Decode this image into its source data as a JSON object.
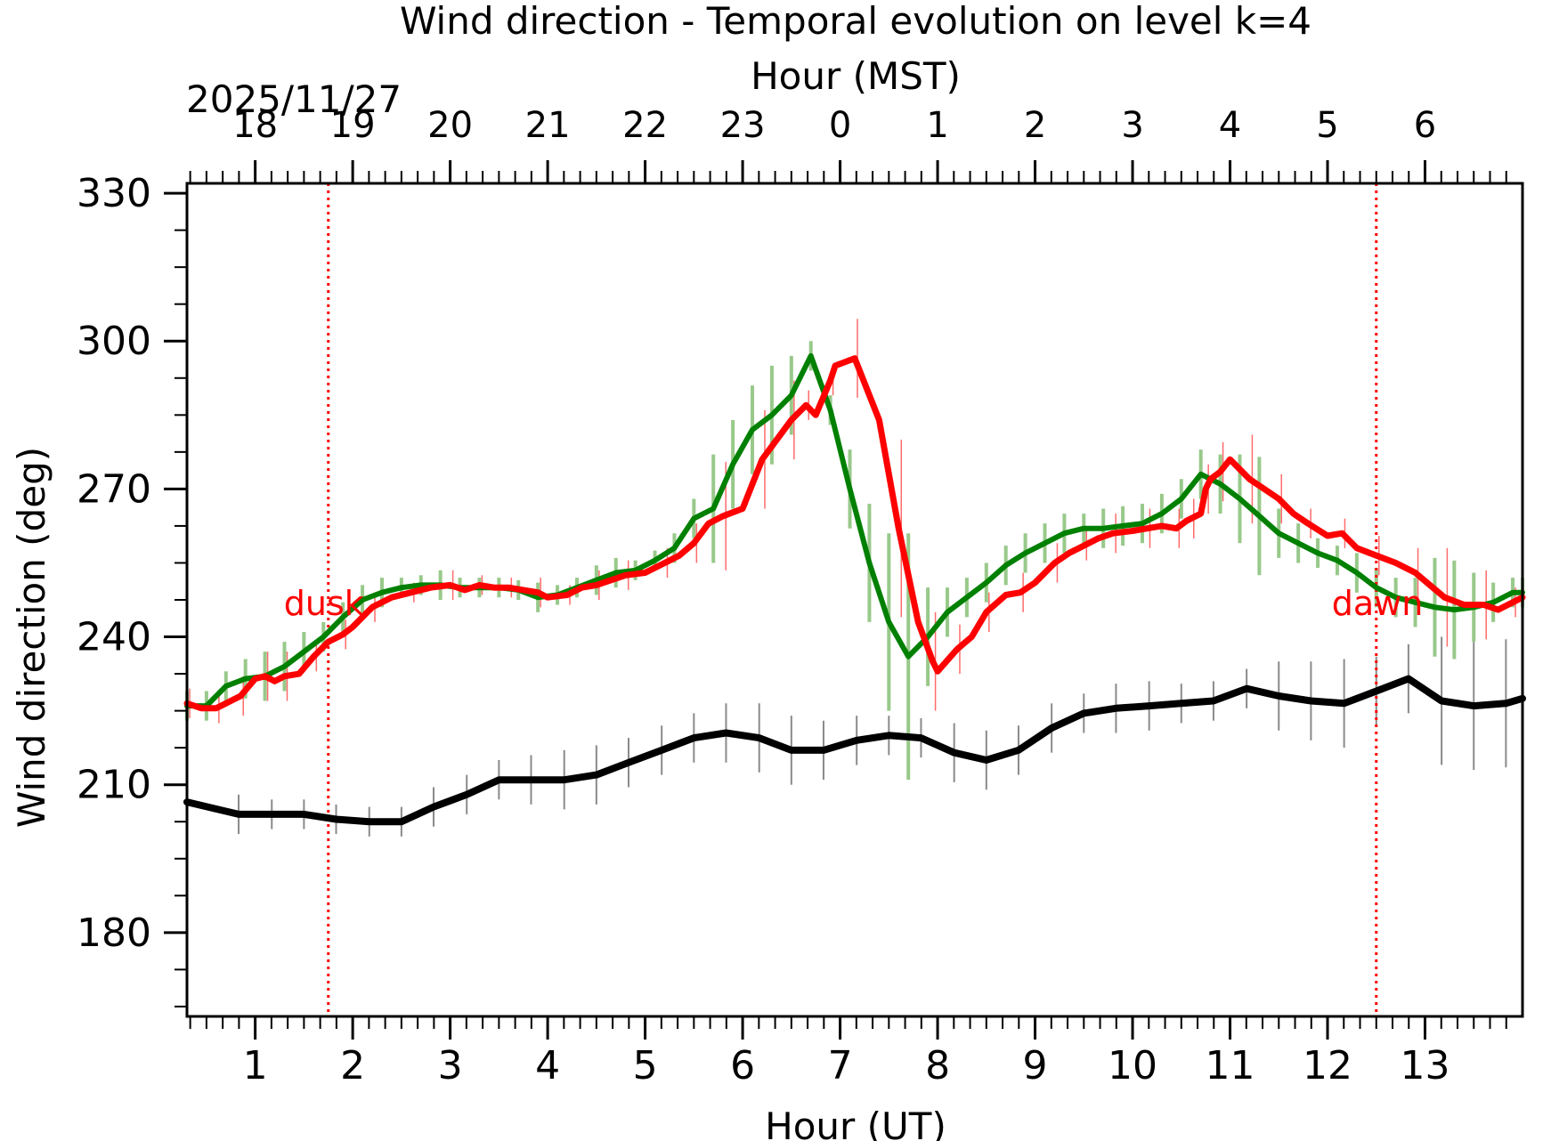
{
  "chart_data": {
    "type": "line",
    "title": "Wind direction - Temporal evolution on level k=4",
    "xlabel": "Hour (UT)",
    "ylabel": "Wind direction (deg)",
    "top_axis_label": "Hour (MST)",
    "date_label": "2025/11/27",
    "xlim": [
      0.3,
      14.0
    ],
    "ylim": [
      163,
      332
    ],
    "x_ticks": [
      "1",
      "2",
      "3",
      "4",
      "5",
      "6",
      "7",
      "8",
      "9",
      "10",
      "11",
      "12",
      "13"
    ],
    "y_ticks": [
      "180",
      "210",
      "240",
      "270",
      "300",
      "330"
    ],
    "top_ticks": [
      "18",
      "19",
      "20",
      "21",
      "22",
      "23",
      "0",
      "1",
      "2",
      "3",
      "4",
      "5",
      "6"
    ],
    "annotations": [
      {
        "text": "dusk",
        "x": 1.75,
        "y": 247
      },
      {
        "text": "dawn",
        "x": 12.5,
        "y": 247
      }
    ],
    "vlines": [
      1.75,
      12.5
    ],
    "colors": {
      "red": "#ff0000",
      "green": "#008000",
      "green_err": "#98c98a",
      "black": "#000000",
      "black_err": "#8a8a8a",
      "red_err": "#ff6b6b"
    },
    "series": [
      {
        "style": "black",
        "x": [
          0.3,
          0.83,
          1.17,
          1.5,
          1.83,
          2.17,
          2.5,
          2.83,
          3.17,
          3.5,
          3.83,
          4.17,
          4.5,
          4.83,
          5.17,
          5.5,
          5.83,
          6.17,
          6.5,
          6.83,
          7.17,
          7.5,
          7.83,
          8.17,
          8.5,
          8.83,
          9.17,
          9.5,
          9.83,
          10.17,
          10.5,
          10.83,
          11.17,
          11.5,
          11.83,
          12.17,
          12.5,
          12.83,
          13.17,
          13.5,
          13.83,
          14.0
        ],
        "y": [
          206.5,
          204,
          204,
          204,
          203,
          202.5,
          202.5,
          205.5,
          208,
          211,
          211,
          211,
          212,
          214.5,
          217,
          219.5,
          220.5,
          219.5,
          217,
          217,
          219,
          220,
          219.5,
          216.5,
          215,
          217,
          221.5,
          224.5,
          225.5,
          226,
          226.5,
          227,
          229.5,
          228,
          227,
          226.5,
          229,
          231.5,
          227,
          226,
          226.5,
          227.5
        ],
        "err": [
          5,
          4,
          3,
          3,
          3,
          3,
          3,
          4,
          4,
          4,
          5,
          6,
          6,
          5,
          5,
          5,
          6,
          7,
          7,
          6,
          5,
          4,
          4,
          6,
          6,
          5,
          5,
          4,
          5,
          5,
          4,
          4,
          4,
          7,
          8,
          9,
          7,
          7,
          13,
          13,
          13,
          13
        ]
      },
      {
        "style": "green",
        "x": [
          0.3,
          0.5,
          0.7,
          0.9,
          1.1,
          1.3,
          1.5,
          1.7,
          1.9,
          2.1,
          2.3,
          2.5,
          2.7,
          2.9,
          3.1,
          3.3,
          3.5,
          3.7,
          3.9,
          4.1,
          4.3,
          4.5,
          4.7,
          4.9,
          5.1,
          5.3,
          5.5,
          5.7,
          5.9,
          6.1,
          6.3,
          6.5,
          6.7,
          6.9,
          7.1,
          7.3,
          7.5,
          7.7,
          7.9,
          8.1,
          8.3,
          8.5,
          8.7,
          8.9,
          9.1,
          9.3,
          9.5,
          9.7,
          9.9,
          10.1,
          10.3,
          10.5,
          10.7,
          10.9,
          11.1,
          11.3,
          11.5,
          11.7,
          11.9,
          12.1,
          12.3,
          12.5,
          12.7,
          12.9,
          13.1,
          13.3,
          13.5,
          13.7,
          13.9,
          14.0
        ],
        "y": [
          226,
          226,
          230,
          231.5,
          232,
          234,
          237,
          240,
          244,
          247.5,
          249,
          250,
          250.5,
          250.5,
          250,
          250,
          250,
          249.5,
          248,
          248.5,
          250,
          251.5,
          253,
          253.5,
          255.5,
          258,
          264,
          266,
          275,
          282,
          285,
          289,
          297,
          286,
          270,
          255,
          243,
          236,
          240,
          245,
          248,
          251,
          254.5,
          257,
          259,
          261,
          262,
          262,
          262.5,
          263,
          265,
          268,
          273,
          271,
          268,
          264.5,
          261,
          259,
          257,
          255.5,
          253,
          250,
          248,
          247,
          246,
          245.5,
          246,
          247,
          249,
          249
        ],
        "err": [
          3,
          3,
          3,
          4,
          5,
          5,
          4,
          3,
          3,
          3,
          3,
          2,
          2,
          3,
          2,
          2,
          2,
          2,
          3,
          2,
          2,
          3,
          3,
          2,
          2,
          3,
          4,
          11,
          9,
          9,
          10,
          8,
          3,
          3,
          8,
          12,
          18,
          25,
          10,
          5,
          4,
          4,
          4,
          4,
          4,
          4,
          3,
          4,
          4,
          4,
          4,
          4,
          5,
          6,
          9,
          12,
          5,
          4,
          3,
          3,
          4,
          4,
          4,
          5,
          10,
          10,
          7,
          4,
          3,
          3
        ]
      },
      {
        "style": "red",
        "x": [
          0.3,
          0.45,
          0.6,
          0.7,
          0.85,
          1.0,
          1.1,
          1.2,
          1.3,
          1.45,
          1.6,
          1.75,
          1.9,
          2.0,
          2.2,
          2.4,
          2.6,
          2.8,
          3.0,
          3.15,
          3.3,
          3.45,
          3.6,
          3.75,
          3.9,
          4.0,
          4.2,
          4.35,
          4.5,
          4.65,
          4.8,
          5.0,
          5.2,
          5.35,
          5.5,
          5.65,
          5.8,
          6.0,
          6.2,
          6.35,
          6.5,
          6.6,
          6.65,
          6.75,
          6.9,
          6.95,
          7.15,
          7.4,
          7.6,
          7.8,
          7.95,
          8.0,
          8.2,
          8.35,
          8.5,
          8.7,
          8.85,
          9.0,
          9.2,
          9.35,
          9.5,
          9.65,
          9.8,
          10.0,
          10.15,
          10.3,
          10.45,
          10.55,
          10.6,
          10.7,
          10.75,
          10.8,
          10.9,
          11.0,
          11.2,
          11.35,
          11.5,
          11.65,
          11.8,
          12.0,
          12.15,
          12.3,
          12.5,
          12.7,
          12.9,
          13.05,
          13.2,
          13.4,
          13.6,
          13.75,
          13.9,
          14.0
        ],
        "y": [
          226.5,
          225.5,
          225.5,
          226.5,
          228,
          231.5,
          232,
          231,
          232,
          232.5,
          236,
          239,
          240.5,
          242,
          246,
          248,
          249,
          250,
          250.5,
          249.5,
          250.5,
          250,
          250,
          249.5,
          249,
          248,
          248.5,
          250,
          250.5,
          251.5,
          252.5,
          253,
          255,
          256.5,
          259,
          263,
          264.5,
          266,
          276,
          280,
          284,
          286,
          287,
          285,
          292,
          295,
          296.5,
          284,
          262,
          243,
          235,
          233,
          237.5,
          240,
          245,
          248.5,
          249,
          251,
          255,
          257,
          258.5,
          260,
          261,
          261.5,
          262,
          262.5,
          262,
          263.5,
          264,
          265,
          270,
          272,
          273.5,
          276,
          272,
          270,
          268,
          265,
          263,
          260.5,
          261,
          258,
          256.5,
          255,
          253,
          250.5,
          248,
          246.5,
          246.5,
          245.5,
          247,
          248
        ]
      }
    ]
  }
}
